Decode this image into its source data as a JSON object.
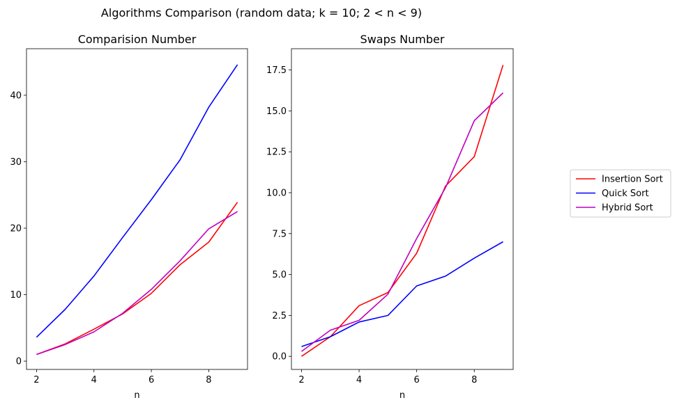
{
  "figure": {
    "title": "Algorithms Comparison (random data;  k = 10;  2 < n < 9)"
  },
  "legend": {
    "placement": "right",
    "entries": [
      {
        "label": "Insertion Sort",
        "color": "#ff0000"
      },
      {
        "label": "Quick Sort",
        "color": "#0000ff"
      },
      {
        "label": "Hybrid Sort",
        "color": "#bf00bf"
      }
    ]
  },
  "chart_data": [
    {
      "type": "line",
      "title": "Comparision Number",
      "xlabel": "n",
      "ylabel": "",
      "xlim": [
        1.65,
        9.35
      ],
      "ylim": [
        -1.25,
        47
      ],
      "xticks": [
        2,
        4,
        6,
        8
      ],
      "yticks": [
        0,
        10,
        20,
        30,
        40
      ],
      "grid": false,
      "x": [
        2,
        3,
        4,
        5,
        6,
        7,
        8,
        9
      ],
      "series": [
        {
          "name": "Insertion Sort",
          "color": "#ff0000",
          "values": [
            1.0,
            2.6,
            4.8,
            7.1,
            10.2,
            14.5,
            17.9,
            23.9
          ]
        },
        {
          "name": "Quick Sort",
          "color": "#0000ff",
          "values": [
            3.6,
            7.8,
            12.8,
            18.6,
            24.3,
            30.3,
            38.2,
            44.6
          ]
        },
        {
          "name": "Hybrid Sort",
          "color": "#bf00bf",
          "values": [
            1.0,
            2.5,
            4.4,
            7.2,
            10.8,
            15.1,
            19.9,
            22.5
          ]
        }
      ]
    },
    {
      "type": "line",
      "title": "Swaps Number",
      "xlabel": "n",
      "ylabel": "",
      "xlim": [
        1.65,
        9.35
      ],
      "ylim": [
        -0.8,
        18.8
      ],
      "xticks": [
        2,
        4,
        6,
        8
      ],
      "yticks": [
        0.0,
        2.5,
        5.0,
        7.5,
        10.0,
        12.5,
        15.0,
        17.5
      ],
      "ytick_labels": [
        "0.0",
        "2.5",
        "5.0",
        "7.5",
        "10.0",
        "12.5",
        "15.0",
        "17.5"
      ],
      "grid": false,
      "x": [
        2,
        3,
        4,
        5,
        6,
        7,
        8,
        9
      ],
      "series": [
        {
          "name": "Insertion Sort",
          "color": "#ff0000",
          "values": [
            0.0,
            1.2,
            3.1,
            3.9,
            6.3,
            10.4,
            12.2,
            17.8
          ]
        },
        {
          "name": "Quick Sort",
          "color": "#0000ff",
          "values": [
            0.6,
            1.2,
            2.1,
            2.5,
            4.3,
            4.9,
            6.0,
            7.0
          ]
        },
        {
          "name": "Hybrid Sort",
          "color": "#bf00bf",
          "values": [
            0.3,
            1.6,
            2.2,
            3.8,
            7.2,
            10.3,
            14.4,
            16.1
          ]
        }
      ]
    }
  ]
}
